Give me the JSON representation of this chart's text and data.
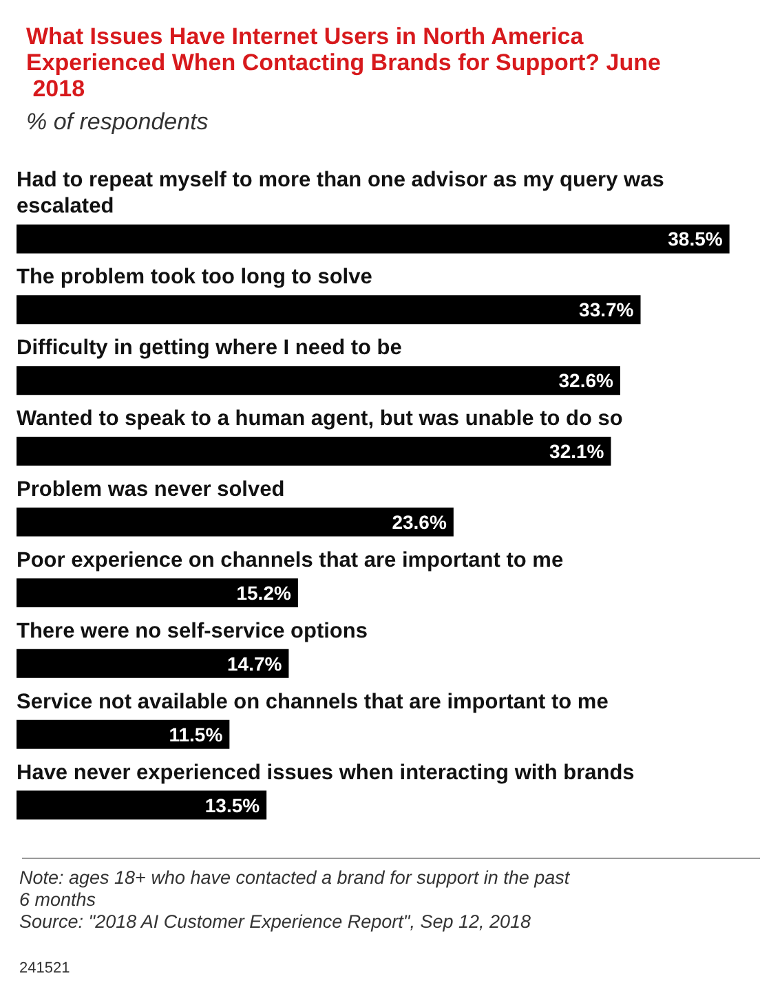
{
  "chart_data": {
    "type": "bar",
    "orientation": "horizontal",
    "title": "What Issues Have Internet Users in North America Experienced When Contacting Brands for Support? June 2018",
    "subtitle": "% of respondents",
    "categories": [
      "Had to repeat myself to more than one advisor as my query was escalated",
      "The problem took too long to solve",
      "Difficulty in getting where I need to be",
      "Wanted to speak to a human agent, but was unable to do so",
      "Problem was never solved",
      "Poor experience on channels that are important to me",
      "There were no self-service options",
      "Service not available on channels that are important to me",
      "Have never experienced issues when interacting with brands"
    ],
    "values": [
      38.5,
      33.7,
      32.6,
      32.1,
      23.6,
      15.2,
      14.7,
      11.5,
      13.5
    ],
    "color": "#000000",
    "value_labels": [
      "38.5%",
      "33.7%",
      "32.6%",
      "32.1%",
      "23.6%",
      "15.2%",
      "14.7%",
      "11.5%",
      "13.5%"
    ],
    "annotations": [
      "Note: ages 18+ who have contacted a brand for support in the past 6 months",
      "Source: \"2018 AI Customer Experience Report\", Sep 12, 2018",
      "241521"
    ]
  }
}
